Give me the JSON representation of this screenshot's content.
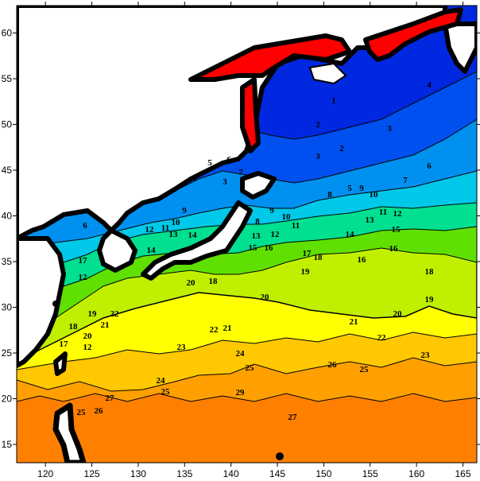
{
  "map": {
    "x_axis": {
      "ticks": [
        "120",
        "125",
        "130",
        "135",
        "140",
        "145",
        "150",
        "155",
        "160",
        "165"
      ],
      "range": [
        116.9,
        166.5
      ]
    },
    "y_axis": {
      "ticks": [
        "15",
        "20",
        "25",
        "30",
        "35",
        "40",
        "45",
        "50",
        "55",
        "60"
      ],
      "range": [
        13,
        63
      ]
    },
    "colors": {
      "land": "#ffffff",
      "masked_land": "#ff0000",
      "coast": "#000000",
      "bands": [
        "#ff8000",
        "#ffa000",
        "#ffc800",
        "#ffff00",
        "#c0f000",
        "#60e000",
        "#00e090",
        "#00c8e8",
        "#0090f0",
        "#0050f0",
        "#0028e0"
      ]
    },
    "contour_labels": [
      "1",
      "2",
      "2",
      "3",
      "3",
      "4",
      "5",
      "6",
      "7",
      "8",
      "9",
      "10",
      "11",
      "12",
      "13",
      "15",
      "14",
      "16",
      "16",
      "18",
      "19",
      "20",
      "21",
      "22",
      "23",
      "26",
      "25",
      "24",
      "25",
      "23",
      "22",
      "21",
      "20",
      "19",
      "18",
      "17",
      "18",
      "20",
      "15",
      "16",
      "13",
      "12",
      "11",
      "10",
      "9",
      "8",
      "7",
      "6",
      "5",
      "4",
      "3",
      "9",
      "10",
      "11",
      "12",
      "13",
      "14",
      "14",
      "6",
      "17",
      "12",
      "19",
      "20",
      "18",
      "17",
      "21",
      "22",
      "12",
      "24",
      "25",
      "27",
      "26",
      "25",
      "27",
      "29"
    ]
  }
}
